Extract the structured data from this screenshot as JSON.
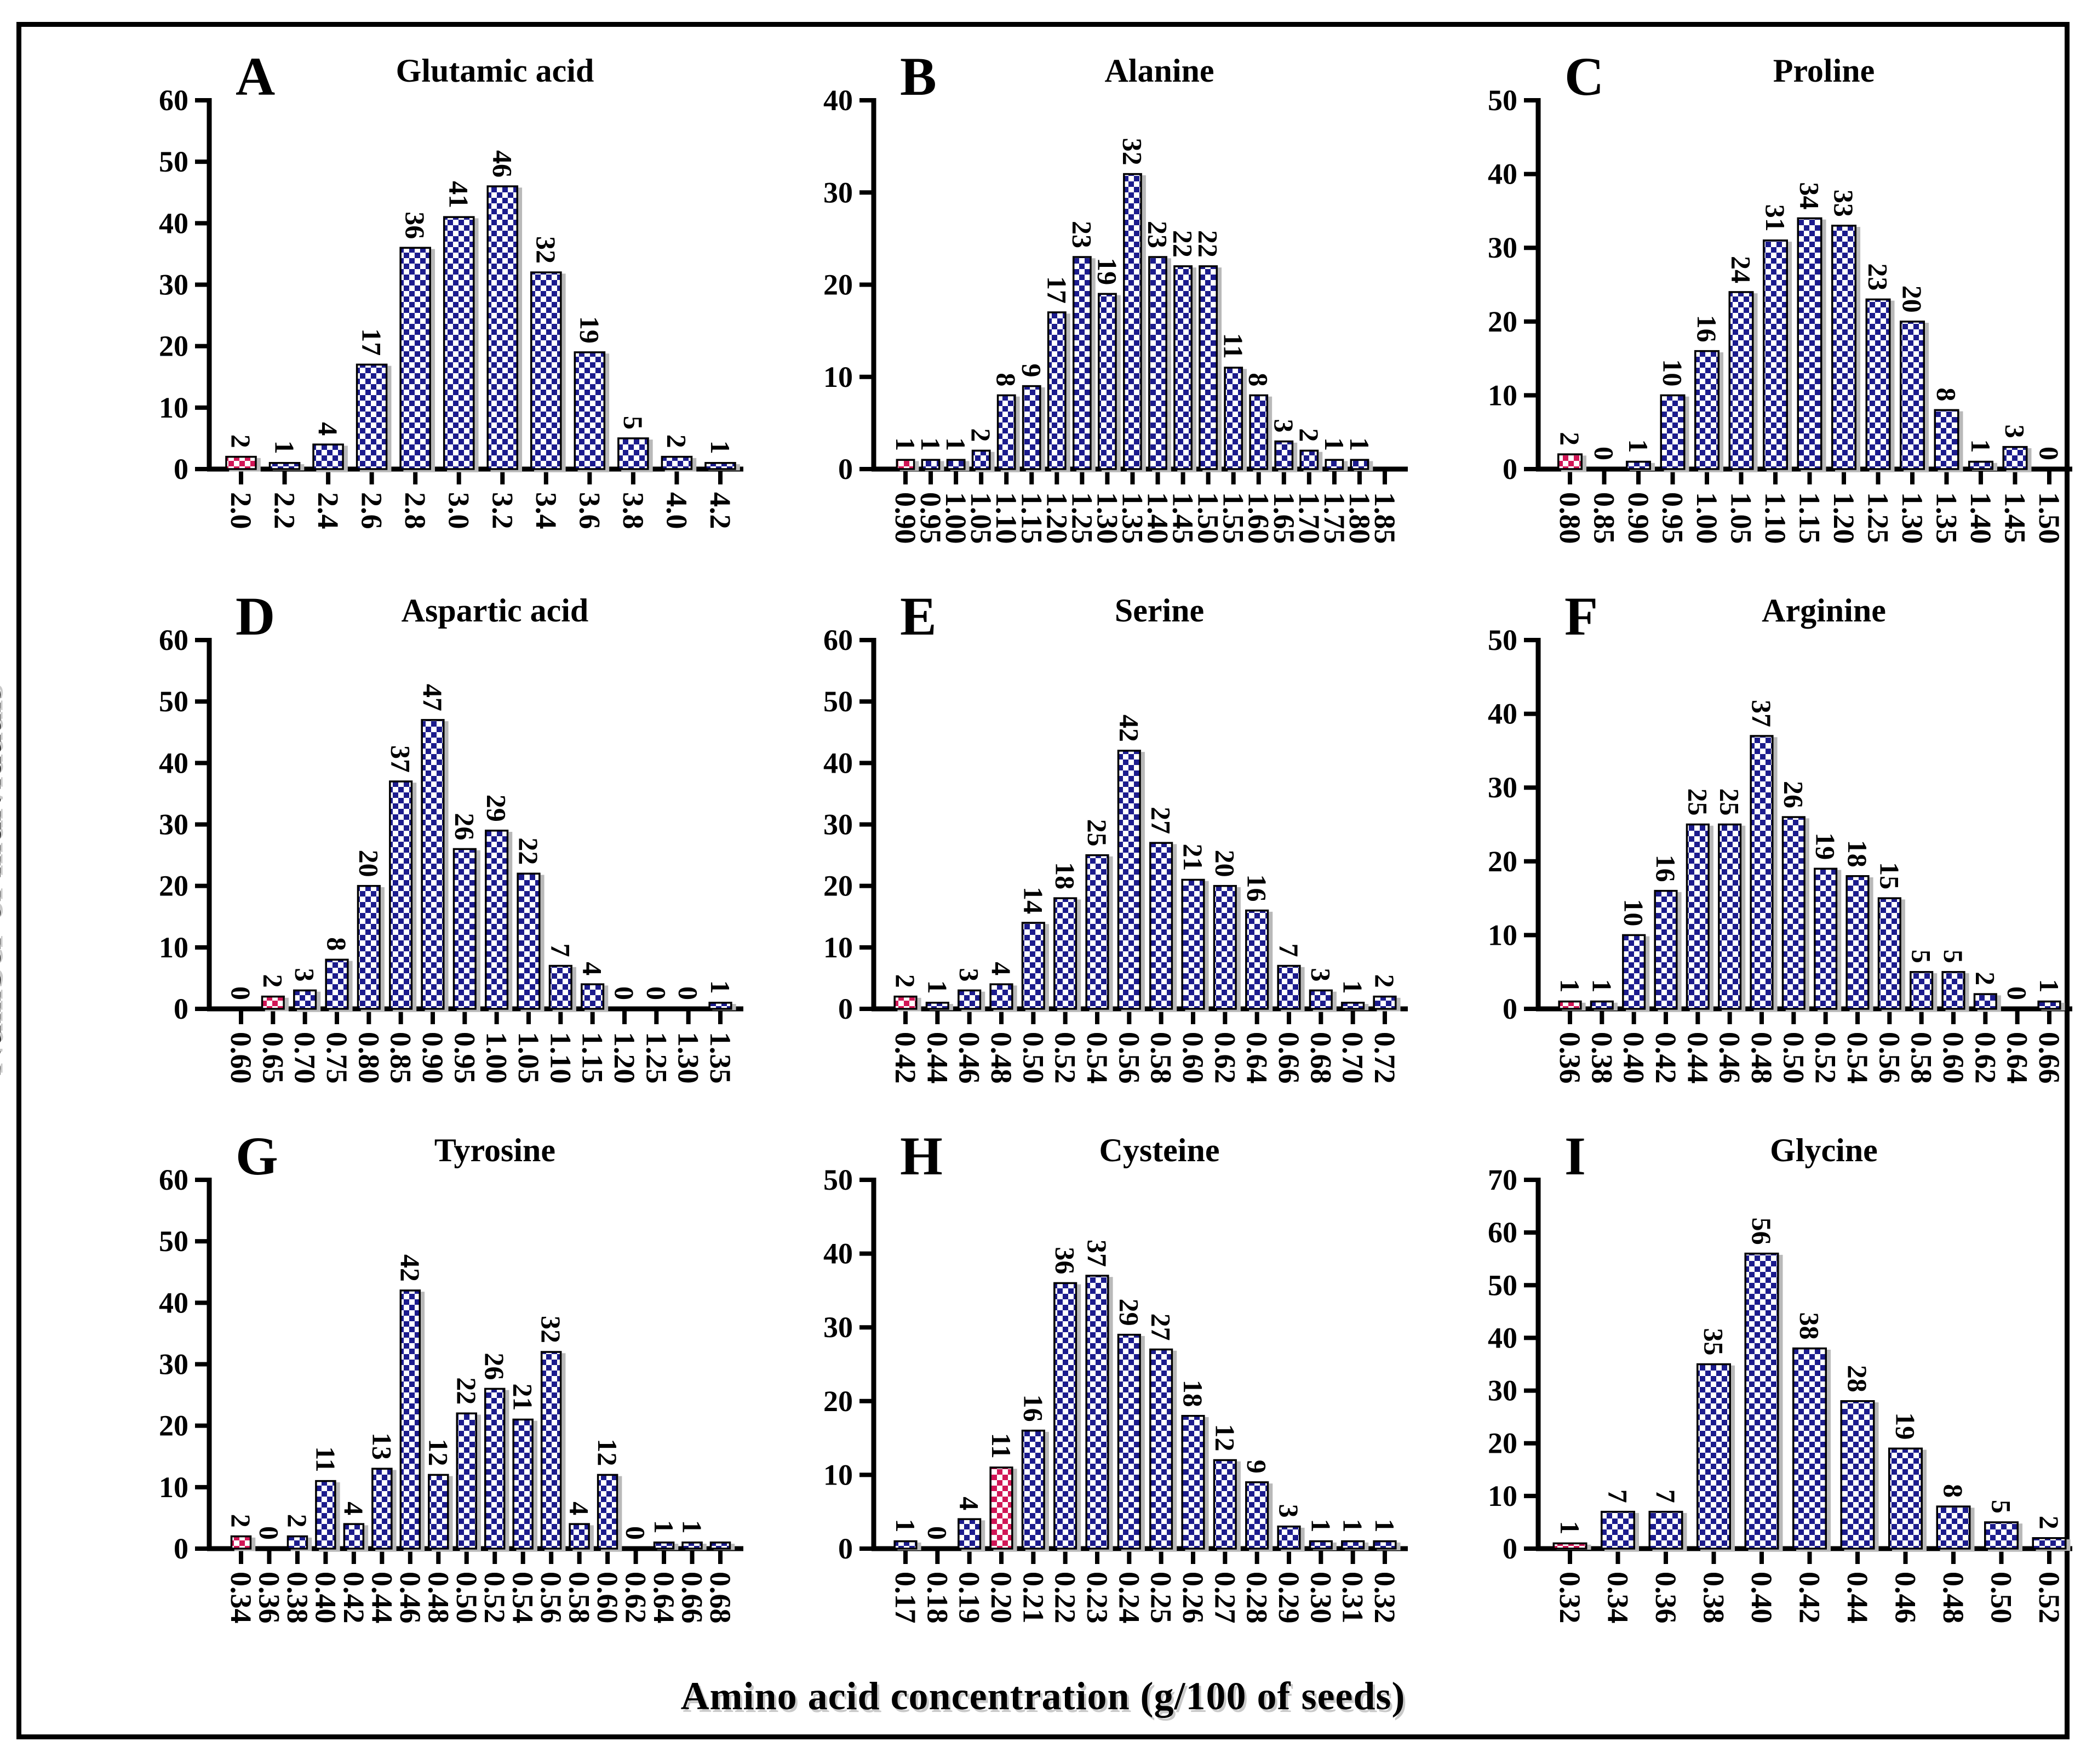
{
  "figure": {
    "ylabel": "Number of individuals",
    "xlabel": "Amino acid concentration (g/100 of seeds)",
    "colors": {
      "bar_blue": "#1a1a8d",
      "bar_pink": "#d11456",
      "bar_outline": "#000000",
      "axis": "#000000",
      "shadow": "#b9b9b9",
      "background": "#ffffff",
      "border": "#000000"
    }
  },
  "chart_data": [
    {
      "type": "bar",
      "letter": "A",
      "title": "Glutamic acid",
      "ylim": [
        0,
        60
      ],
      "ytick_step": 10,
      "categories": [
        "2.0",
        "2.2",
        "2.4",
        "2.6",
        "2.8",
        "3.0",
        "3.2",
        "3.4",
        "3.6",
        "3.8",
        "4.0",
        "4.2"
      ],
      "values": [
        2,
        1,
        4,
        17,
        36,
        41,
        46,
        32,
        19,
        5,
        2,
        1
      ],
      "labels": [
        "2",
        "1",
        "4",
        "17",
        "36",
        "41",
        "46",
        "32",
        "19",
        "5",
        "2",
        "1"
      ],
      "highlight_index": 0
    },
    {
      "type": "bar",
      "letter": "B",
      "title": "Alanine",
      "ylim": [
        0,
        40
      ],
      "ytick_step": 10,
      "categories": [
        "0.90",
        "0.95",
        "1.00",
        "1.05",
        "1.10",
        "1.15",
        "1.20",
        "1.25",
        "1.30",
        "1.35",
        "1.40",
        "1.45",
        "1.50",
        "1.55",
        "1.60",
        "1.65",
        "1.70",
        "1.75",
        "1.80",
        "1.85"
      ],
      "values": [
        1,
        1,
        1,
        2,
        8,
        9,
        17,
        23,
        19,
        32,
        23,
        22,
        22,
        11,
        8,
        3,
        2,
        1,
        1,
        0
      ],
      "labels": [
        "1",
        "1",
        "1",
        "2",
        "8",
        "9",
        "17",
        "23",
        "19",
        "32",
        "23",
        "22",
        "22",
        "11",
        "8",
        "3",
        "2",
        "1",
        "1",
        ""
      ],
      "highlight_index": 0
    },
    {
      "type": "bar",
      "letter": "C",
      "title": "Proline",
      "ylim": [
        0,
        50
      ],
      "ytick_step": 10,
      "categories": [
        "0.80",
        "0.85",
        "0.90",
        "0.95",
        "1.00",
        "1.05",
        "1.10",
        "1.15",
        "1.20",
        "1.25",
        "1.30",
        "1.35",
        "1.40",
        "1.45",
        "1.50"
      ],
      "values": [
        2,
        0,
        1,
        10,
        16,
        24,
        31,
        34,
        33,
        23,
        20,
        8,
        1,
        3,
        0
      ],
      "labels": [
        "2",
        "0",
        "1",
        "10",
        "16",
        "24",
        "31",
        "34",
        "33",
        "23",
        "20",
        "8",
        "1",
        "3",
        "0"
      ],
      "highlight_index": 0
    },
    {
      "type": "bar",
      "letter": "D",
      "title": "Aspartic acid",
      "ylim": [
        0,
        60
      ],
      "ytick_step": 10,
      "categories": [
        "0.60",
        "0.65",
        "0.70",
        "0.75",
        "0.80",
        "0.85",
        "0.90",
        "0.95",
        "1.00",
        "1.05",
        "1.10",
        "1.15",
        "1.20",
        "1.25",
        "1.30",
        "1.35"
      ],
      "values": [
        0,
        2,
        3,
        8,
        20,
        37,
        47,
        26,
        29,
        22,
        7,
        4,
        0,
        0,
        0,
        1
      ],
      "labels": [
        "0",
        "2",
        "3",
        "8",
        "20",
        "37",
        "47",
        "26",
        "29",
        "22",
        "7",
        "4",
        "0",
        "0",
        "0",
        "1"
      ],
      "highlight_index": 1
    },
    {
      "type": "bar",
      "letter": "E",
      "title": "Serine",
      "ylim": [
        0,
        60
      ],
      "ytick_step": 10,
      "categories": [
        "0.42",
        "0.44",
        "0.46",
        "0.48",
        "0.50",
        "0.52",
        "0.54",
        "0.56",
        "0.58",
        "0.60",
        "0.62",
        "0.64",
        "0.66",
        "0.68",
        "0.70",
        "0.72"
      ],
      "values": [
        2,
        1,
        3,
        4,
        14,
        18,
        25,
        42,
        27,
        21,
        20,
        16,
        7,
        3,
        1,
        2
      ],
      "labels": [
        "2",
        "1",
        "3",
        "4",
        "14",
        "18",
        "25",
        "42",
        "27",
        "21",
        "20",
        "16",
        "7",
        "3",
        "1",
        "2"
      ],
      "highlight_index": 0
    },
    {
      "type": "bar",
      "letter": "F",
      "title": "Arginine",
      "ylim": [
        0,
        50
      ],
      "ytick_step": 10,
      "categories": [
        "0.36",
        "0.38",
        "0.40",
        "0.42",
        "0.44",
        "0.46",
        "0.48",
        "0.50",
        "0.52",
        "0.54",
        "0.56",
        "0.58",
        "0.60",
        "0.62",
        "0.64",
        "0.66"
      ],
      "values": [
        1,
        1,
        10,
        16,
        25,
        25,
        37,
        26,
        19,
        18,
        15,
        5,
        5,
        2,
        0,
        1
      ],
      "labels": [
        "1",
        "1",
        "10",
        "16",
        "25",
        "25",
        "37",
        "26",
        "19",
        "18",
        "15",
        "5",
        "5",
        "2",
        "0",
        "1"
      ],
      "highlight_index": 0
    },
    {
      "type": "bar",
      "letter": "G",
      "title": "Tyrosine",
      "ylim": [
        0,
        60
      ],
      "ytick_step": 10,
      "categories": [
        "0.34",
        "0.36",
        "0.38",
        "0.40",
        "0.42",
        "0.44",
        "0.46",
        "0.48",
        "0.50",
        "0.52",
        "0.54",
        "0.56",
        "0.58",
        "0.60",
        "0.62",
        "0.64",
        "0.66",
        "0.68"
      ],
      "values": [
        2,
        0,
        2,
        11,
        4,
        13,
        42,
        12,
        22,
        26,
        21,
        32,
        4,
        12,
        0,
        1,
        1,
        1
      ],
      "labels": [
        "2",
        "0",
        "2",
        "11",
        "4",
        "13",
        "42",
        "12",
        "22",
        "26",
        "21",
        "32",
        "4",
        "12",
        "0",
        "1",
        "1",
        ""
      ],
      "highlight_index": 0
    },
    {
      "type": "bar",
      "letter": "H",
      "title": "Cysteine",
      "ylim": [
        0,
        50
      ],
      "ytick_step": 10,
      "categories": [
        "0.17",
        "0.18",
        "0.19",
        "0.20",
        "0.21",
        "0.22",
        "0.23",
        "0.24",
        "0.25",
        "0.26",
        "0.27",
        "0.28",
        "0.29",
        "0.30",
        "0.31",
        "0.32"
      ],
      "values": [
        1,
        0,
        4,
        11,
        16,
        36,
        37,
        29,
        27,
        18,
        12,
        9,
        3,
        1,
        1,
        1
      ],
      "labels": [
        "1",
        "0",
        "4",
        "11",
        "16",
        "36",
        "37",
        "29",
        "27",
        "18",
        "12",
        "9",
        "3",
        "1",
        "1",
        "1"
      ],
      "highlight_index": 3
    },
    {
      "type": "bar",
      "letter": "I",
      "title": "Glycine",
      "ylim": [
        0,
        70
      ],
      "ytick_step": 10,
      "categories": [
        "0.32",
        "0.34",
        "0.36",
        "0.38",
        "0.40",
        "0.42",
        "0.44",
        "0.46",
        "0.48",
        "0.50",
        "0.52"
      ],
      "values": [
        1,
        7,
        7,
        35,
        56,
        38,
        28,
        19,
        8,
        5,
        2
      ],
      "labels": [
        "1",
        "7",
        "7",
        "35",
        "56",
        "38",
        "28",
        "19",
        "8",
        "5",
        "2"
      ],
      "highlight_index": 0
    }
  ]
}
